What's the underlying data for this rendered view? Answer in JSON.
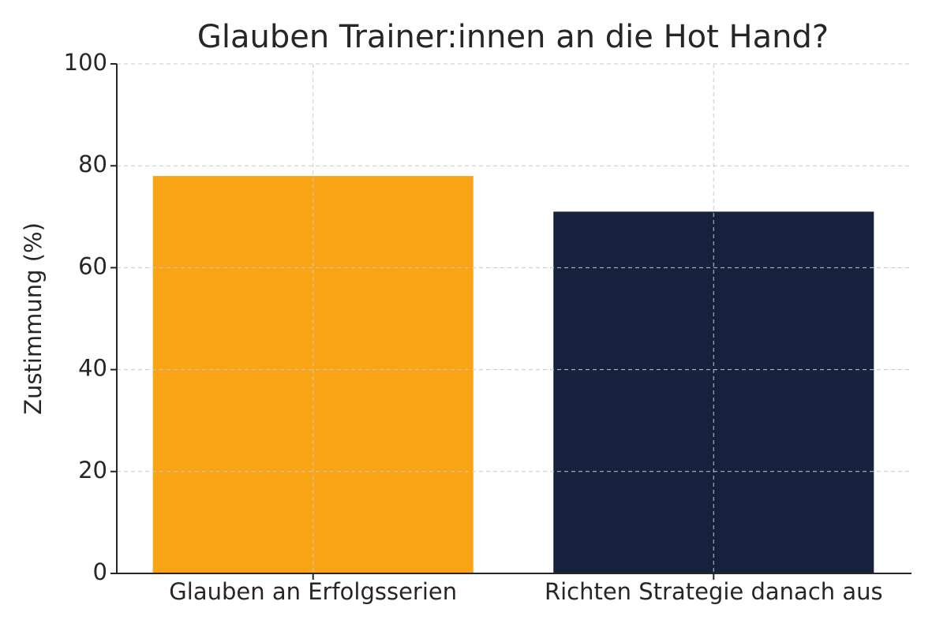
{
  "chart_data": {
    "type": "bar",
    "title": "Glauben Trainer:innen an die Hot Hand?",
    "y_label": "Zustimmung (%)",
    "categories": [
      "Glauben an Erfolgsserien",
      "Richten Strategie danach aus"
    ],
    "values": [
      78,
      71
    ],
    "colors": [
      "#faa315",
      "#16213d"
    ],
    "ylim": [
      0,
      100
    ],
    "yticks": [
      0,
      20,
      40,
      60,
      80,
      100
    ],
    "grid": true
  }
}
